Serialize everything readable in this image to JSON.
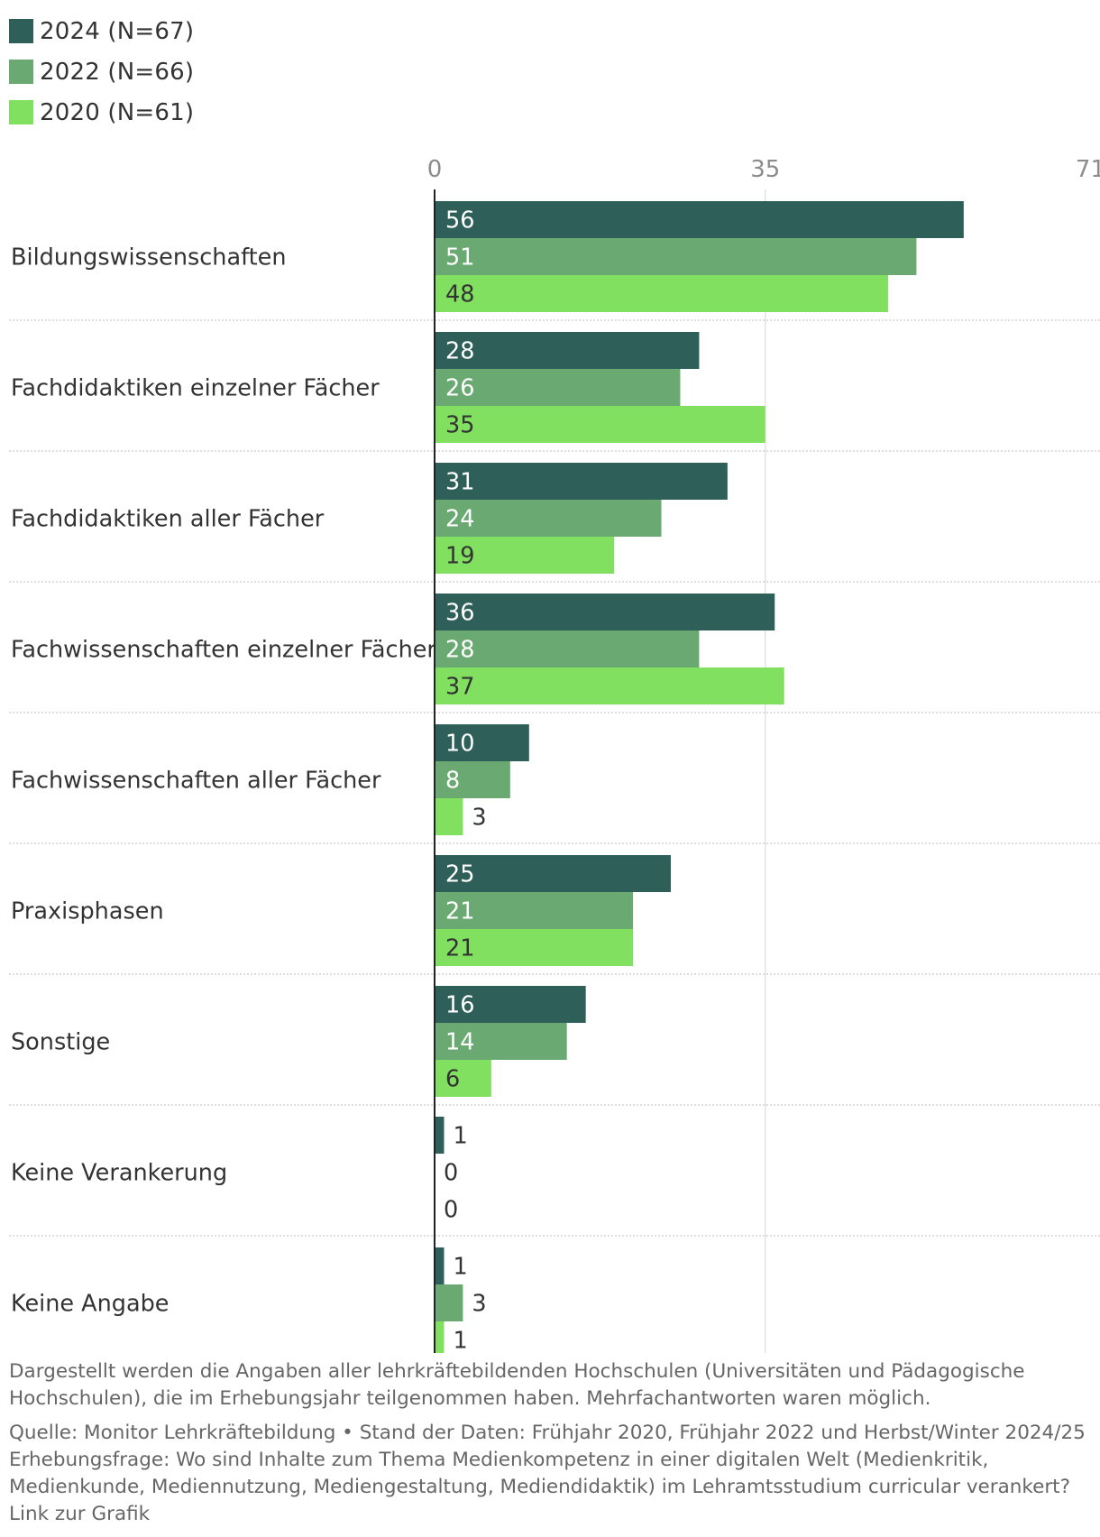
{
  "chart_data": {
    "type": "bar",
    "orientation": "horizontal",
    "categories": [
      "Bildungswissenschaften",
      "Fachdidaktiken einzelner Fächer",
      "Fachdidaktiken aller Fächer",
      "Fachwissenschaften einzelner Fächer",
      "Fachwissenschaften aller Fächer",
      "Praxisphasen",
      "Sonstige",
      "Keine Verankerung",
      "Keine Angabe"
    ],
    "series": [
      {
        "name": "2024 (N=67)",
        "color": "#2f5f59",
        "values": [
          56,
          28,
          31,
          36,
          10,
          25,
          16,
          1,
          1
        ]
      },
      {
        "name": "2022 (N=66)",
        "color": "#6aaa72",
        "values": [
          51,
          26,
          24,
          28,
          8,
          21,
          14,
          0,
          3
        ]
      },
      {
        "name": "2020 (N=61)",
        "color": "#82e060",
        "values": [
          48,
          35,
          19,
          37,
          3,
          21,
          6,
          0,
          1
        ]
      }
    ],
    "xlim": [
      0,
      71
    ],
    "xticks": [
      "0",
      "35",
      "71"
    ],
    "xlabel": "",
    "ylabel": "",
    "legend_position": "top-left",
    "grid": true
  },
  "notes": {
    "description": "Dargestellt werden die Angaben aller lehrkräftebildenden Hochschulen (Universitäten und Pädagogische Hochschulen), die im Erhebungsjahr teilgenommen haben. Mehrfachantworten waren möglich.",
    "source": "Quelle: Monitor Lehrkräftebildung • Stand der Daten: Frühjahr 2020, Frühjahr 2022 und Herbst/Winter 2024/25",
    "question": "Erhebungsfrage: Wo sind Inhalte zum Thema Medienkompetenz in einer digitalen Welt (Medienkritik, Medienkunde, Mediennutzung, Mediengestaltung, Mediendidaktik) im Lehramtsstudium curricular verankert?",
    "link_label": "Link zur Grafik"
  }
}
